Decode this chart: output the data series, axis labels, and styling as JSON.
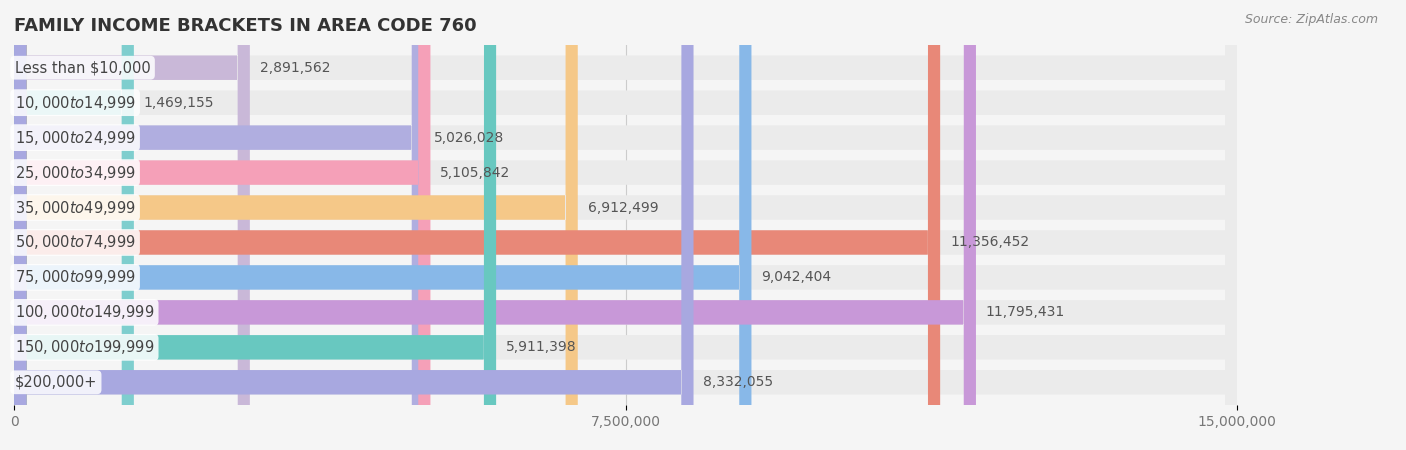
{
  "title": "FAMILY INCOME BRACKETS IN AREA CODE 760",
  "source": "Source: ZipAtlas.com",
  "categories": [
    "Less than $10,000",
    "$10,000 to $14,999",
    "$15,000 to $24,999",
    "$25,000 to $34,999",
    "$35,000 to $49,999",
    "$50,000 to $74,999",
    "$75,000 to $99,999",
    "$100,000 to $149,999",
    "$150,000 to $199,999",
    "$200,000+"
  ],
  "values": [
    2891562,
    1469155,
    5026028,
    5105842,
    6912499,
    11356452,
    9042404,
    11795431,
    5911398,
    8332055
  ],
  "bar_colors": [
    "#c9b8d8",
    "#7ecece",
    "#b0aee0",
    "#f5a0b8",
    "#f5c888",
    "#e88878",
    "#88b8e8",
    "#c898d8",
    "#68c8c0",
    "#a8a8e0"
  ],
  "bar_edge_colors": [
    "#b8a0cc",
    "#60b8b8",
    "#9898d0",
    "#e880a0",
    "#e8b060",
    "#d86868",
    "#6898d0",
    "#b878c8",
    "#48b0b0",
    "#8888cc"
  ],
  "label_colors": [
    "#b8a0cc",
    "#60b8b8",
    "#9898d0",
    "#e880a0",
    "#e8b060",
    "#d86868",
    "#6898d0",
    "#b878c8",
    "#48b0b0",
    "#8888cc"
  ],
  "value_labels": [
    "2,891,562",
    "1,469,155",
    "5,026,028",
    "5,105,842",
    "6,912,499",
    "11,356,452",
    "9,042,404",
    "11,795,431",
    "5,911,398",
    "8,332,055"
  ],
  "xlim": [
    0,
    15000000
  ],
  "xticks": [
    0,
    7500000,
    15000000
  ],
  "xticklabels": [
    "0",
    "7,500,000",
    "15,000,000"
  ],
  "background_color": "#f5f5f5",
  "bar_background_color": "#ebebeb",
  "title_fontsize": 13,
  "label_fontsize": 10.5,
  "value_fontsize": 10,
  "tick_fontsize": 10
}
